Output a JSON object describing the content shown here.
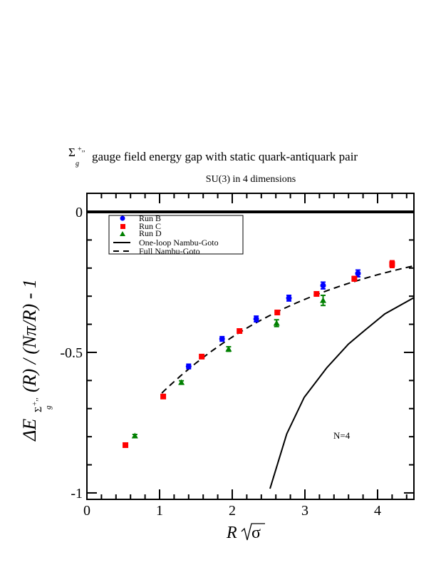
{
  "chart_data": {
    "type": "scatter",
    "title": {
      "symbol": "Σ",
      "symbol_sup": "+,,",
      "symbol_sub": "g",
      "text": "gauge field energy gap with static quark-antiquark pair"
    },
    "subtitle": "SU(3) in 4 dimensions",
    "xlabel": {
      "main": "R",
      "root": "σ"
    },
    "ylabel": {
      "delta": "ΔE",
      "sub1": "Σ",
      "sup": "+,,",
      "sub2": "g",
      "rest": "(R) / (Nπ/R) - 1"
    },
    "xlim": [
      0,
      4.5
    ],
    "ylim": [
      -1.023,
      0.066
    ],
    "x_ticks": [
      "0",
      "1",
      "2",
      "3",
      "4"
    ],
    "x_tick_values": [
      0,
      1,
      2,
      3,
      4
    ],
    "y_ticks": [
      "0",
      "-0.5",
      "-1"
    ],
    "y_tick_values": [
      0,
      -0.5,
      -1
    ],
    "legend_position": "top-left",
    "annotation": {
      "text": "N=4",
      "x": 3.53,
      "y": -0.795
    },
    "zero_line": {
      "y": 0
    },
    "series": [
      {
        "name": "Run B",
        "marker": "circle",
        "color": "#0000ff",
        "points": [
          {
            "x": 1.4,
            "y": -0.55,
            "err": 0.008
          },
          {
            "x": 1.86,
            "y": -0.452,
            "err": 0.008
          },
          {
            "x": 2.33,
            "y": -0.381,
            "err": 0.01
          },
          {
            "x": 2.78,
            "y": -0.307,
            "err": 0.01
          },
          {
            "x": 3.25,
            "y": -0.262,
            "err": 0.012
          },
          {
            "x": 3.73,
            "y": -0.219,
            "err": 0.012
          }
        ]
      },
      {
        "name": "Run C",
        "marker": "square",
        "color": "#ff0000",
        "points": [
          {
            "x": 0.53,
            "y": -0.83,
            "err": 0.005
          },
          {
            "x": 1.05,
            "y": -0.657,
            "err": 0.005
          },
          {
            "x": 1.58,
            "y": -0.515,
            "err": 0.006
          },
          {
            "x": 2.1,
            "y": -0.424,
            "err": 0.006
          },
          {
            "x": 2.62,
            "y": -0.358,
            "err": 0.006
          },
          {
            "x": 3.16,
            "y": -0.292,
            "err": 0.007
          },
          {
            "x": 3.68,
            "y": -0.238,
            "err": 0.008
          },
          {
            "x": 4.2,
            "y": -0.186,
            "err": 0.012
          }
        ]
      },
      {
        "name": "Run D",
        "marker": "triangle",
        "color": "#008000",
        "points": [
          {
            "x": 0.66,
            "y": -0.797,
            "err": 0.005
          },
          {
            "x": 1.3,
            "y": -0.607,
            "err": 0.006
          },
          {
            "x": 1.95,
            "y": -0.488,
            "err": 0.008
          },
          {
            "x": 2.61,
            "y": -0.396,
            "err": 0.012
          },
          {
            "x": 3.25,
            "y": -0.315,
            "err": 0.018
          }
        ]
      },
      {
        "name": "One-loop Nambu-Goto",
        "line": "solid",
        "color": "#000000",
        "points": [
          {
            "x": 2.52,
            "y": -0.985
          },
          {
            "x": 2.75,
            "y": -0.79
          },
          {
            "x": 2.99,
            "y": -0.66
          },
          {
            "x": 3.3,
            "y": -0.555
          },
          {
            "x": 3.6,
            "y": -0.47
          },
          {
            "x": 3.83,
            "y": -0.42
          },
          {
            "x": 4.1,
            "y": -0.363
          },
          {
            "x": 4.5,
            "y": -0.305
          }
        ]
      },
      {
        "name": "Full Nambu-Goto",
        "line": "dashed",
        "color": "#000000",
        "formula": {
          "N": 4,
          "D": 4
        },
        "x_range": [
          1.03,
          4.5
        ]
      }
    ]
  }
}
